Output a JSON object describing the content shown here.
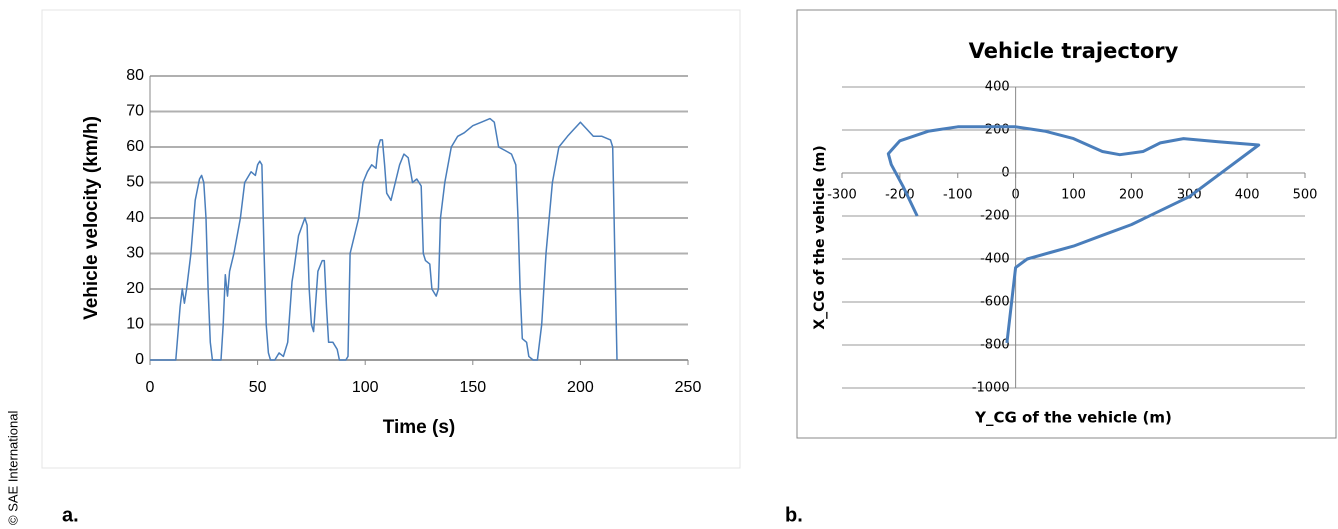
{
  "credit": "© SAE International",
  "chart_data": [
    {
      "type": "line",
      "panel": "a.",
      "xlabel": "Time (s)",
      "ylabel": "Vehicle velocity (km/h)",
      "xlim": [
        0,
        250
      ],
      "xticks": [
        0,
        50,
        100,
        150,
        200,
        250
      ],
      "ylim": [
        0,
        80
      ],
      "yticks": [
        0,
        10,
        20,
        30,
        40,
        50,
        60,
        70,
        80
      ],
      "grid": true,
      "color": "#4a7ebb",
      "x": [
        0,
        12,
        14,
        15,
        16,
        17,
        19,
        21,
        23,
        24,
        25,
        26,
        27,
        28,
        29,
        33,
        34,
        35,
        36,
        37,
        39,
        42,
        44,
        47,
        49,
        50,
        51,
        52,
        53,
        54,
        55,
        56,
        58,
        60,
        62,
        64,
        66,
        67,
        69,
        72,
        73,
        74,
        75,
        76,
        78,
        80,
        81,
        82,
        83,
        85,
        87,
        88,
        91,
        92,
        93,
        95,
        97,
        99,
        101,
        103,
        105,
        106,
        107,
        108,
        109,
        110,
        112,
        114,
        116,
        118,
        120,
        122,
        124,
        126,
        127,
        128,
        130,
        131,
        133,
        134,
        135,
        137,
        140,
        143,
        146,
        150,
        154,
        158,
        160,
        162,
        165,
        168,
        170,
        171,
        172,
        173,
        175,
        176,
        178,
        180,
        182,
        184,
        187,
        190,
        194,
        197,
        200,
        203,
        206,
        210,
        214,
        215,
        216,
        217
      ],
      "values": [
        0,
        0,
        15,
        20,
        16,
        20,
        30,
        45,
        51,
        52,
        50,
        40,
        20,
        5,
        0,
        0,
        10,
        24,
        18,
        25,
        30,
        40,
        50,
        53,
        52,
        55,
        56,
        55,
        30,
        10,
        2,
        0,
        0,
        2,
        1,
        5,
        22,
        26,
        35,
        40,
        38,
        20,
        10,
        8,
        25,
        28,
        28,
        15,
        5,
        5,
        3,
        0,
        0,
        1,
        30,
        35,
        40,
        50,
        53,
        55,
        54,
        60,
        62,
        62,
        55,
        47,
        45,
        50,
        55,
        58,
        57,
        50,
        51,
        49,
        30,
        28,
        27,
        20,
        18,
        20,
        40,
        50,
        60,
        63,
        64,
        66,
        67,
        68,
        67,
        60,
        59,
        58,
        55,
        40,
        20,
        6,
        5,
        1,
        0,
        0,
        10,
        30,
        50,
        60,
        63,
        65,
        67,
        65,
        63,
        63,
        62,
        60,
        30,
        0
      ]
    },
    {
      "type": "line",
      "panel": "b.",
      "title": "Vehicle trajectory",
      "xlabel": "Y_CG of the vehicle (m)",
      "ylabel": "X_CG of the vehicle (m)",
      "xlim": [
        -300,
        500
      ],
      "xticks": [
        -300,
        -200,
        -100,
        0,
        100,
        200,
        300,
        400,
        500
      ],
      "ylim": [
        -1000,
        400
      ],
      "yticks": [
        -1000,
        -800,
        -600,
        -400,
        -200,
        0,
        200,
        400
      ],
      "grid": true,
      "color": "#4a7ebb",
      "x": [
        -15,
        0,
        20,
        60,
        100,
        150,
        200,
        300,
        420,
        350,
        290,
        250,
        220,
        180,
        150,
        100,
        50,
        0,
        -100,
        -150,
        -200,
        -220,
        -215,
        -195,
        -170
      ],
      "values": [
        -790,
        -440,
        -400,
        -370,
        -340,
        -290,
        -240,
        -110,
        130,
        145,
        160,
        140,
        100,
        85,
        100,
        160,
        195,
        215,
        215,
        195,
        150,
        90,
        40,
        -60,
        -200
      ]
    }
  ]
}
